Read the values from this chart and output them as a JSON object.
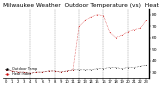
{
  "title": "Milwaukee Weather  Outdoor Temperature (vs)  Heat Index (Last 24 Hours)",
  "temp_color": "#000000",
  "heat_color": "#cc0000",
  "background_color": "#ffffff",
  "plot_bg_color": "#ffffff",
  "grid_color": "#888888",
  "x_hours": [
    0,
    1,
    2,
    3,
    4,
    5,
    6,
    7,
    8,
    9,
    10,
    11,
    12,
    13,
    14,
    15,
    16,
    17,
    18,
    19,
    20,
    21,
    22,
    23
  ],
  "temp_values": [
    32,
    31,
    30,
    30,
    29,
    30,
    30,
    31,
    31,
    30,
    31,
    32,
    32,
    32,
    32,
    33,
    33,
    34,
    34,
    33,
    34,
    34,
    35,
    36
  ],
  "heat_values": [
    32,
    31,
    30,
    30,
    29,
    30,
    30,
    31,
    31,
    30,
    31,
    32,
    70,
    75,
    78,
    80,
    79,
    65,
    60,
    62,
    65,
    67,
    68,
    75
  ],
  "ylim": [
    25,
    85
  ],
  "yticks": [
    30,
    40,
    50,
    60,
    70,
    80
  ],
  "ytick_labels": [
    "30",
    "40",
    "50",
    "60",
    "70",
    "80"
  ],
  "vgrid_x": [
    4,
    8,
    12,
    16,
    20
  ],
  "title_fontsize": 4.2,
  "tick_fontsize": 3.2,
  "legend_items": [
    "Outdoor Temp",
    "Heat Index"
  ],
  "legend_colors": [
    "#000000",
    "#cc0000"
  ]
}
